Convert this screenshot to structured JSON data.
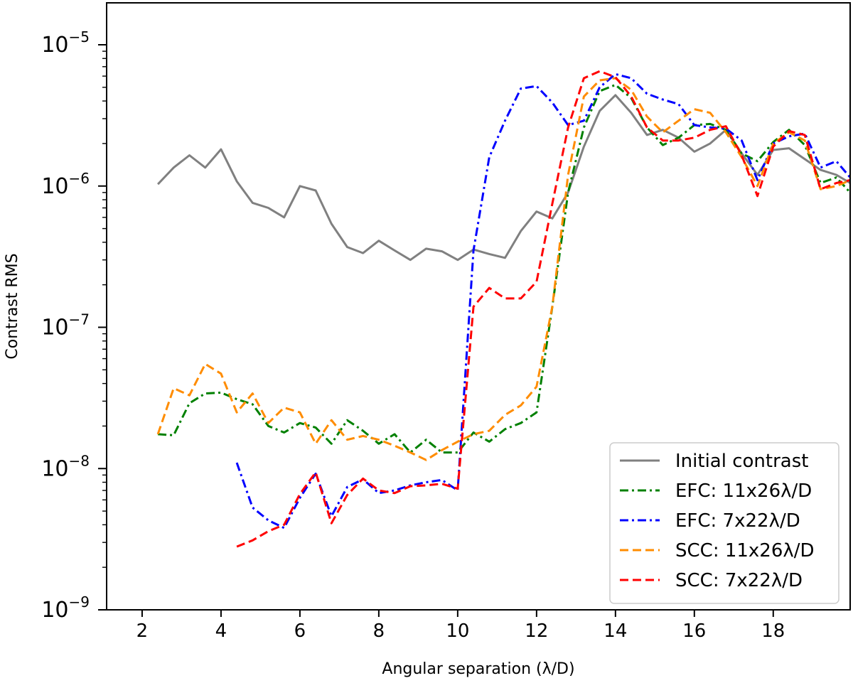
{
  "chart_data": {
    "type": "line",
    "xlabel": "Angular separation (λ/D)",
    "ylabel": "Contrast RMS",
    "xlim": [
      1.1,
      19.95
    ],
    "ylim": [
      1e-09,
      2e-05
    ],
    "yscale": "log",
    "grid": false,
    "legend_position": "bottom-right",
    "xticks": [
      2,
      4,
      6,
      8,
      10,
      12,
      14,
      16,
      18
    ],
    "yticks": [
      {
        "value": 1e-09,
        "mantissa": "10",
        "exponent": "−9"
      },
      {
        "value": 1e-08,
        "mantissa": "10",
        "exponent": "−8"
      },
      {
        "value": 1e-07,
        "mantissa": "10",
        "exponent": "−7"
      },
      {
        "value": 1e-06,
        "mantissa": "10",
        "exponent": "−6"
      },
      {
        "value": 1e-05,
        "mantissa": "10",
        "exponent": "−5"
      }
    ],
    "series": [
      {
        "name": "Initial contrast",
        "color": "#808080",
        "style": "solid",
        "x": [
          2.4,
          2.8,
          3.2,
          3.6,
          4.0,
          4.4,
          4.8,
          5.2,
          5.6,
          6.0,
          6.4,
          6.8,
          7.2,
          7.6,
          8.0,
          8.4,
          8.8,
          9.2,
          9.6,
          10.0,
          10.4,
          10.8,
          11.2,
          11.6,
          12.0,
          12.4,
          12.8,
          13.2,
          13.6,
          14.0,
          14.4,
          14.8,
          15.2,
          15.6,
          16.0,
          16.4,
          16.8,
          17.2,
          17.6,
          18.0,
          18.4,
          18.8,
          19.2,
          19.6,
          19.95
        ],
        "y": [
          1.03e-06,
          1.35e-06,
          1.65e-06,
          1.35e-06,
          1.82e-06,
          1.08e-06,
          7.6e-07,
          7e-07,
          6e-07,
          1e-06,
          9.3e-07,
          5.4e-07,
          3.7e-07,
          3.35e-07,
          4.1e-07,
          3.5e-07,
          3e-07,
          3.6e-07,
          3.45e-07,
          3e-07,
          3.55e-07,
          3.3e-07,
          3.1e-07,
          4.8e-07,
          6.6e-07,
          5.9e-07,
          9e-07,
          1.9e-06,
          3.4e-06,
          4.4e-06,
          3.3e-06,
          2.3e-06,
          2.5e-06,
          2.2e-06,
          1.75e-06,
          2e-06,
          2.5e-06,
          1.7e-06,
          1.2e-06,
          1.8e-06,
          1.85e-06,
          1.55e-06,
          1.3e-06,
          1.2e-06,
          1.05e-06
        ]
      },
      {
        "name": "EFC: 11x26λ/D",
        "color": "#008000",
        "style": "dashdot",
        "x": [
          2.4,
          2.8,
          3.2,
          3.6,
          4.0,
          4.4,
          4.8,
          5.2,
          5.6,
          6.0,
          6.4,
          6.8,
          7.2,
          7.6,
          8.0,
          8.4,
          8.8,
          9.2,
          9.6,
          10.0,
          10.4,
          10.8,
          11.2,
          11.6,
          12.0,
          12.4,
          12.8,
          13.2,
          13.6,
          14.0,
          14.4,
          14.8,
          15.2,
          15.6,
          16.0,
          16.4,
          16.8,
          17.2,
          17.6,
          18.0,
          18.4,
          18.8,
          19.2,
          19.6,
          19.95
        ],
        "y": [
          1.75e-08,
          1.72e-08,
          2.9e-08,
          3.4e-08,
          3.45e-08,
          3.1e-08,
          2.85e-08,
          2e-08,
          1.8e-08,
          2.1e-08,
          1.95e-08,
          1.5e-08,
          2.2e-08,
          1.85e-08,
          1.5e-08,
          1.75e-08,
          1.3e-08,
          1.6e-08,
          1.3e-08,
          1.3e-08,
          1.8e-08,
          1.55e-08,
          1.9e-08,
          2.1e-08,
          2.5e-08,
          1.4e-07,
          9e-07,
          2.6e-06,
          4.7e-06,
          5.2e-06,
          4.2e-06,
          2.6e-06,
          1.95e-06,
          2.2e-06,
          2.7e-06,
          2.75e-06,
          2.5e-06,
          1.7e-06,
          1.5e-06,
          2.05e-06,
          2.5e-06,
          1.95e-06,
          1.05e-06,
          1.15e-06,
          9e-07
        ]
      },
      {
        "name": "EFC: 7x22λ/D",
        "color": "#0000ff",
        "style": "dashdot",
        "x": [
          4.4,
          4.8,
          5.2,
          5.6,
          6.0,
          6.4,
          6.8,
          7.2,
          7.6,
          8.0,
          8.4,
          8.8,
          9.2,
          9.6,
          10.0,
          10.4,
          10.8,
          11.2,
          11.6,
          12.0,
          12.4,
          12.8,
          13.2,
          13.6,
          14.0,
          14.4,
          14.8,
          15.2,
          15.6,
          16.0,
          16.4,
          16.8,
          17.2,
          17.6,
          18.0,
          18.4,
          18.8,
          19.2,
          19.6,
          19.95
        ],
        "y": [
          1.1e-08,
          5.3e-09,
          4.3e-09,
          3.8e-09,
          6.2e-09,
          9.2e-09,
          4.6e-09,
          7.4e-09,
          8.4e-09,
          6.7e-09,
          7e-09,
          7.6e-09,
          8e-09,
          8.3e-09,
          7e-09,
          3.5e-07,
          1.6e-06,
          2.9e-06,
          4.9e-06,
          5.1e-06,
          3.9e-06,
          2.7e-06,
          2.9e-06,
          5e-06,
          6.2e-06,
          5.8e-06,
          4.5e-06,
          4.1e-06,
          3.8e-06,
          2.7e-06,
          2.6e-06,
          2.55e-06,
          2.1e-06,
          1.1e-06,
          2e-06,
          2.25e-06,
          2.35e-06,
          1.35e-06,
          1.5e-06,
          1.15e-06
        ]
      },
      {
        "name": "SCC: 11x26λ/D",
        "color": "#ff8c00",
        "style": "dashed",
        "x": [
          2.4,
          2.8,
          3.2,
          3.6,
          4.0,
          4.4,
          4.8,
          5.2,
          5.6,
          6.0,
          6.4,
          6.8,
          7.2,
          7.6,
          8.0,
          8.4,
          8.8,
          9.2,
          9.6,
          10.0,
          10.4,
          10.8,
          11.2,
          11.6,
          12.0,
          12.4,
          12.8,
          13.2,
          13.6,
          14.0,
          14.4,
          14.8,
          15.2,
          15.6,
          16.0,
          16.4,
          16.8,
          17.2,
          17.6,
          18.0,
          18.4,
          18.8,
          19.2,
          19.6,
          19.95
        ],
        "y": [
          1.75e-08,
          3.7e-08,
          3.3e-08,
          5.5e-08,
          4.7e-08,
          2.5e-08,
          3.4e-08,
          2.1e-08,
          2.7e-08,
          2.5e-08,
          1.5e-08,
          2.2e-08,
          1.6e-08,
          1.7e-08,
          1.6e-08,
          1.45e-08,
          1.3e-08,
          1.15e-08,
          1.35e-08,
          1.55e-08,
          1.75e-08,
          1.85e-08,
          2.4e-08,
          2.8e-08,
          3.8e-08,
          1.4e-07,
          1.2e-06,
          4.3e-06,
          5.6e-06,
          5.8e-06,
          4.8e-06,
          3.1e-06,
          2.4e-06,
          2.9e-06,
          3.5e-06,
          3.3e-06,
          2.4e-06,
          1.6e-06,
          1e-06,
          2e-06,
          2.4e-06,
          2.1e-06,
          9.5e-07,
          1e-06,
          1.1e-06
        ]
      },
      {
        "name": "SCC: 7x22λ/D",
        "color": "#ff0000",
        "style": "dashed",
        "x": [
          4.4,
          4.8,
          5.2,
          5.6,
          6.0,
          6.4,
          6.8,
          7.2,
          7.6,
          8.0,
          8.4,
          8.8,
          9.2,
          9.6,
          10.0,
          10.4,
          10.8,
          11.2,
          11.6,
          12.0,
          12.4,
          12.8,
          13.2,
          13.6,
          14.0,
          14.4,
          14.8,
          15.2,
          15.6,
          16.0,
          16.4,
          16.8,
          17.2,
          17.6,
          18.0,
          18.4,
          18.8,
          19.2,
          19.6,
          19.95
        ],
        "y": [
          2.8e-09,
          3.1e-09,
          3.6e-09,
          4e-09,
          6.6e-09,
          9.4e-09,
          4.1e-09,
          6.5e-09,
          8.5e-09,
          7e-09,
          6.7e-09,
          7.5e-09,
          7.6e-09,
          7.8e-09,
          7.2e-09,
          1.4e-07,
          1.9e-07,
          1.6e-07,
          1.6e-07,
          2.1e-07,
          7.5e-07,
          2.6e-06,
          5.8e-06,
          6.5e-06,
          5.9e-06,
          4.3e-06,
          2.6e-06,
          2.1e-06,
          2.1e-06,
          2.2e-06,
          2.5e-06,
          2.65e-06,
          1.65e-06,
          8.5e-07,
          1.9e-06,
          2.45e-06,
          2.3e-06,
          9.5e-07,
          1.05e-06,
          1.1e-06
        ]
      }
    ]
  }
}
